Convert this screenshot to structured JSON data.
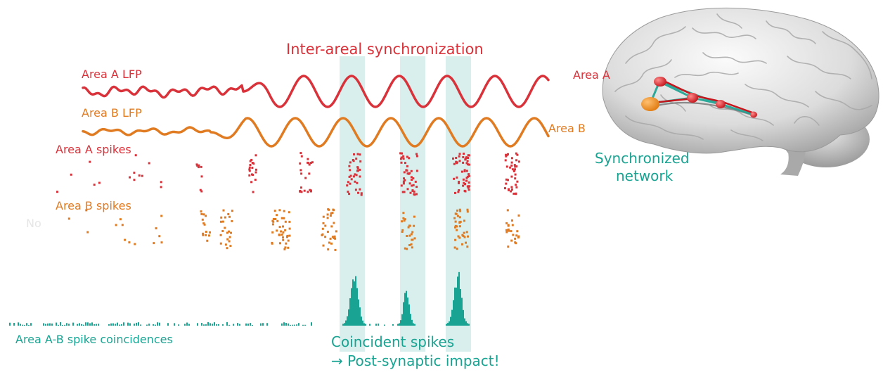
{
  "title": "Inter-areal synchronization",
  "labels": {
    "area_a_lfp": "Area A LFP",
    "area_b_lfp": "Area B LFP",
    "area_a_spikes": "Area A spikes",
    "area_b_spikes": "Area B spikes",
    "faded_label": "No",
    "coincidences": "Area A-B spike coincidences",
    "coincident_line1": "Coincident spikes",
    "coincident_line2": "→ Post-synaptic impact!"
  },
  "brain": {
    "area_a": "Area A",
    "area_b": "Area B",
    "network_line1": "Synchronized",
    "network_line2": "network"
  },
  "colors": {
    "area_a": "#d9323a",
    "area_b": "#e07b22",
    "sync": "#19a392",
    "highlight": "#d8efed"
  }
}
